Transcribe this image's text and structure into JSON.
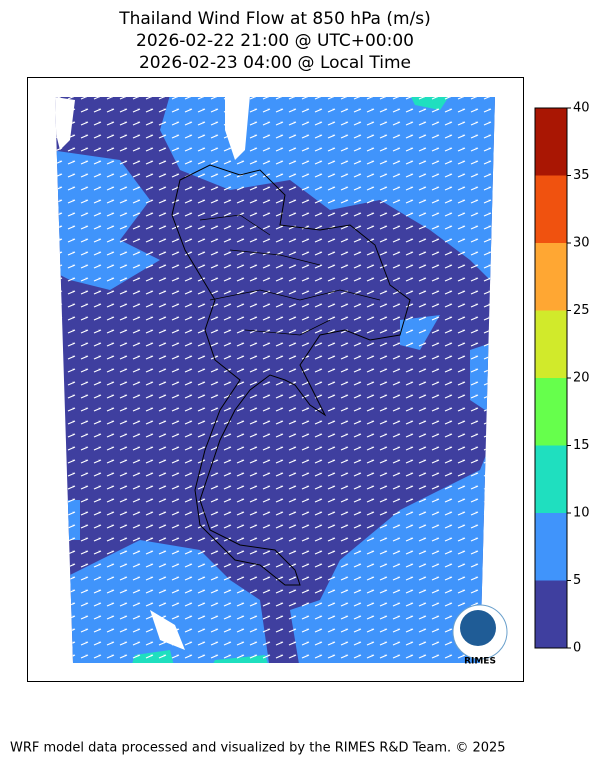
{
  "header": {
    "title_lines": [
      "Thailand Wind Flow at 850 hPa (m/s)",
      "2026-02-22 21:00 @ UTC+00:00",
      "2026-02-23 04:00 @ Local Time"
    ]
  },
  "colorbar": {
    "ticks": [
      0,
      5,
      10,
      15,
      20,
      25,
      30,
      35,
      40
    ],
    "colors": [
      "#3f3f9f",
      "#4094fb",
      "#1fdfbf",
      "#66ff4c",
      "#d1ea2b",
      "#ffa733",
      "#f0520f",
      "#a91603"
    ]
  },
  "logo": {
    "text": "RIMES"
  },
  "footer": {
    "text": "WRF model data processed and visualized by the RIMES R&D Team. © 2025"
  }
}
